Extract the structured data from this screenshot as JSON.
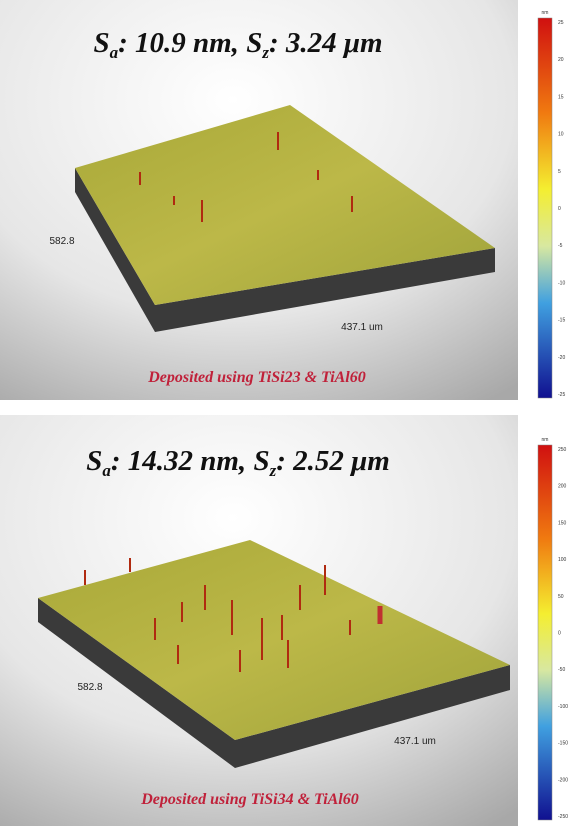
{
  "panels": [
    {
      "title": [
        "S",
        "a",
        ": 10.9 nm, ",
        "S",
        "z",
        ": 3.24 μm"
      ],
      "x_label": "582.8",
      "y_label": "437.1 um",
      "caption": "Deposited using TiSi23 & TiAl60",
      "colorbar": {
        "unit": "nm",
        "ticks": [
          "25",
          "20",
          "15",
          "10",
          "5",
          "0",
          "-5",
          "-10",
          "-15",
          "-20",
          "-25"
        ]
      }
    },
    {
      "title": [
        "S",
        "a",
        ": 14.32 nm, ",
        "S",
        "z",
        ": 2.52 μm"
      ],
      "x_label": "582.8",
      "y_label": "437.1 um",
      "caption": "Deposited using TiSi34 & TiAl60",
      "colorbar": {
        "unit": "nm",
        "ticks": [
          "250",
          "200",
          "150",
          "100",
          "50",
          "0",
          "-50",
          "-100",
          "-150",
          "-200",
          "-250"
        ]
      }
    }
  ]
}
